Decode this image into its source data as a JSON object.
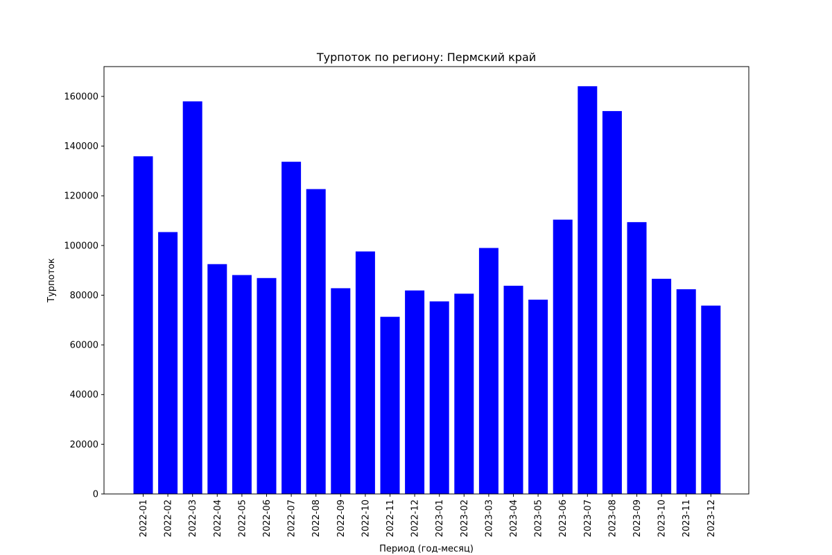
{
  "chart_data": {
    "type": "bar",
    "title": "Турпоток по региону: Пермский край",
    "xlabel": "Период (год-месяц)",
    "ylabel": "Турпоток",
    "categories": [
      "2022-01",
      "2022-02",
      "2022-03",
      "2022-04",
      "2022-05",
      "2022-06",
      "2022-07",
      "2022-08",
      "2022-09",
      "2022-10",
      "2022-11",
      "2022-12",
      "2023-01",
      "2023-02",
      "2023-03",
      "2023-04",
      "2023-05",
      "2023-06",
      "2023-07",
      "2023-08",
      "2023-09",
      "2023-10",
      "2023-11",
      "2023-12"
    ],
    "values": [
      135900,
      105400,
      158000,
      92500,
      88100,
      86900,
      133700,
      122700,
      82800,
      97600,
      71300,
      81900,
      77500,
      80600,
      99000,
      83800,
      78200,
      110400,
      164100,
      154100,
      109400,
      86600,
      82400,
      75800
    ],
    "ylim": [
      0,
      172000
    ],
    "yticks": [
      0,
      20000,
      40000,
      60000,
      80000,
      100000,
      120000,
      140000,
      160000
    ],
    "bar_color": "#0000ff",
    "grid": false,
    "legend": "none"
  }
}
